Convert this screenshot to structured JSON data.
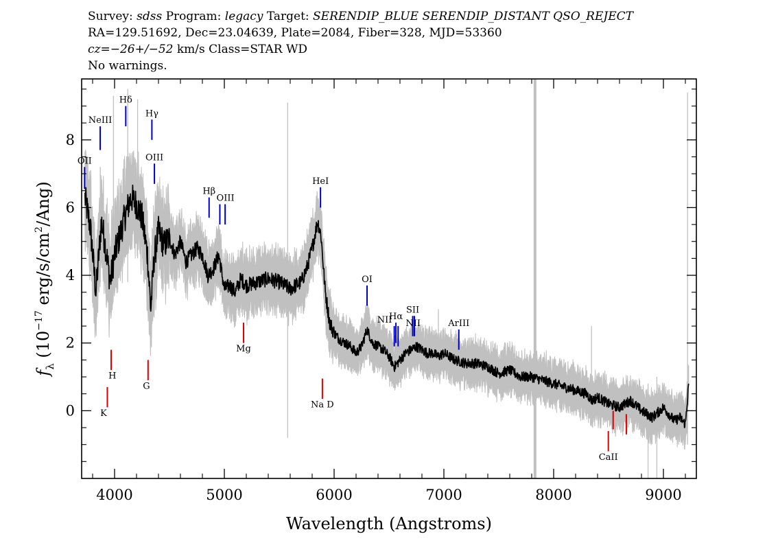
{
  "header": {
    "line1": {
      "p1": "Survey: ",
      "v1": "sdss",
      "p2": " Program: ",
      "v2": "legacy",
      "p3": " Target: ",
      "v3": "SERENDIP_BLUE SERENDIP_DISTANT QSO_REJECT"
    },
    "line2": "RA=129.51692, Dec=23.04639, Plate=2084, Fiber=328, MJD=53360",
    "line3": {
      "cz": "cz",
      "eq": "=",
      "v": "−26+/−52",
      "rest": " km/s Class=STAR WD"
    },
    "line4": "No warnings."
  },
  "chart_data": {
    "type": "line",
    "title": "",
    "xlabel": "Wavelength (Angstroms)",
    "ylabel_parts": {
      "f": "f",
      "sub": "λ",
      "open": " (10",
      "exp1": "−17",
      "mid": " erg/s/cm",
      "exp2": "2",
      "close": "/Ang)"
    },
    "xlim": [
      3700,
      9300
    ],
    "ylim": [
      -2,
      9.8
    ],
    "xticks": [
      4000,
      5000,
      6000,
      7000,
      8000,
      9000
    ],
    "yticks": [
      0,
      2,
      4,
      6,
      8
    ],
    "colors": {
      "flux": "#000000",
      "error": "#c0c0c0",
      "emission": "#0000cc",
      "absorption": "#dd0000"
    },
    "series": [
      {
        "x": [
          3730,
          3780,
          3830,
          3880,
          3920,
          3960,
          4000,
          4050,
          4100,
          4150,
          4200,
          4250,
          4300,
          4330,
          4360,
          4400,
          4450,
          4500,
          4550,
          4600,
          4650,
          4700,
          4750,
          4800,
          4850,
          4900,
          4950,
          5000,
          5050,
          5100,
          5150,
          5200,
          5300,
          5400,
          5500,
          5600,
          5700,
          5750,
          5800,
          5850,
          5880,
          5920,
          5960,
          6000,
          6050,
          6100,
          6150,
          6200,
          6250,
          6300,
          6350,
          6400,
          6450,
          6500,
          6550,
          6600,
          6650,
          6700,
          6750,
          6800,
          6850,
          6900,
          6950,
          7000,
          7100,
          7200,
          7300,
          7400,
          7500,
          7600,
          7700,
          7800,
          7900,
          8000,
          8100,
          8200,
          8300,
          8350,
          8400,
          8500,
          8600,
          8700,
          8800,
          8900,
          9000,
          9100,
          9150,
          9200,
          9230
        ],
        "y": [
          6.3,
          5.4,
          3.5,
          5.6,
          4.8,
          3.8,
          4.6,
          5.2,
          5.8,
          6.3,
          6.1,
          5.7,
          4.6,
          3.0,
          4.5,
          5.3,
          4.9,
          5.1,
          4.6,
          5.0,
          4.4,
          4.6,
          4.8,
          4.6,
          4.0,
          4.2,
          4.6,
          3.6,
          3.7,
          3.5,
          3.9,
          3.7,
          3.8,
          3.9,
          3.8,
          3.6,
          3.8,
          4.2,
          4.8,
          5.6,
          5.2,
          3.5,
          2.6,
          2.3,
          2.1,
          2.0,
          1.9,
          1.7,
          1.9,
          2.4,
          2.0,
          1.9,
          1.8,
          1.6,
          1.3,
          1.5,
          1.7,
          1.8,
          1.9,
          1.8,
          1.7,
          1.7,
          1.6,
          1.7,
          1.5,
          1.4,
          1.4,
          1.3,
          1.1,
          1.2,
          1.0,
          1.0,
          0.9,
          0.8,
          0.7,
          0.6,
          0.5,
          0.3,
          0.4,
          0.2,
          0.1,
          0.3,
          0.0,
          -0.2,
          0.1,
          -0.3,
          -0.2,
          -0.4,
          0.8
        ]
      }
    ],
    "spikes": [
      {
        "x": 3870,
        "lo": 3.8,
        "hi": 7.2
      },
      {
        "x": 3990,
        "lo": 4.0,
        "hi": 9.3
      },
      {
        "x": 4120,
        "lo": 3.8,
        "hi": 9.5
      },
      {
        "x": 4210,
        "lo": 4.5,
        "hi": 9.2
      },
      {
        "x": 5577,
        "lo": -0.8,
        "hi": 9.1
      },
      {
        "x": 6300,
        "lo": 1.5,
        "hi": 3.2
      },
      {
        "x": 6950,
        "lo": 1.6,
        "hi": 3.0
      },
      {
        "x": 8345,
        "lo": 0.8,
        "hi": 2.5
      },
      {
        "x": 8860,
        "lo": -2.0,
        "hi": 0.8
      },
      {
        "x": 8940,
        "lo": -2.0,
        "hi": 1.0
      },
      {
        "x": 9220,
        "lo": -1.0,
        "hi": 9.4
      }
    ],
    "bad_pixel_column": {
      "x": 7830
    },
    "emission_lines": [
      {
        "label": "OII",
        "x": 3727,
        "y1": 6.55,
        "y2": 7.2,
        "lx": 3727,
        "ly": 7.3
      },
      {
        "label": "NeIII",
        "x": 3869,
        "y1": 7.7,
        "y2": 8.4,
        "lx": 3869,
        "ly": 8.5
      },
      {
        "label": "Hδ",
        "x": 4102,
        "y1": 8.4,
        "y2": 9.0,
        "lx": 4102,
        "ly": 9.1
      },
      {
        "label": "Hγ",
        "x": 4340,
        "y1": 8.0,
        "y2": 8.6,
        "lx": 4340,
        "ly": 8.7
      },
      {
        "label": "OIII",
        "x": 4363,
        "y1": 6.7,
        "y2": 7.3,
        "lx": 4363,
        "ly": 7.4
      },
      {
        "label": "Hβ",
        "x": 4861,
        "y1": 5.7,
        "y2": 6.3,
        "lx": 4861,
        "ly": 6.4
      },
      {
        "label": "OIII",
        "x": 4959,
        "y1": 5.5,
        "y2": 6.1,
        "lx": 5010,
        "ly": 6.2
      },
      {
        "label": "",
        "x": 5007,
        "y1": 5.5,
        "y2": 6.1,
        "lx": 5007,
        "ly": 6.2
      },
      {
        "label": "HeI",
        "x": 5876,
        "y1": 6.0,
        "y2": 6.6,
        "lx": 5876,
        "ly": 6.7
      },
      {
        "label": "OI",
        "x": 6300,
        "y1": 3.1,
        "y2": 3.7,
        "lx": 6300,
        "ly": 3.8
      },
      {
        "label": "NII",
        "x": 6548,
        "y1": 1.9,
        "y2": 2.5,
        "lx": 6460,
        "ly": 2.6
      },
      {
        "label": "Hα",
        "x": 6563,
        "y1": 2.0,
        "y2": 2.6,
        "lx": 6563,
        "ly": 2.7
      },
      {
        "label": "NII",
        "x": 6583,
        "y1": 1.9,
        "y2": 2.5,
        "lx": 6720,
        "ly": 2.5
      },
      {
        "label": "SII",
        "x": 6716,
        "y1": 2.2,
        "y2": 2.8,
        "lx": 6716,
        "ly": 2.9
      },
      {
        "label": "",
        "x": 6731,
        "y1": 2.2,
        "y2": 2.8,
        "lx": 6731,
        "ly": 2.9
      },
      {
        "label": "ArIII",
        "x": 7136,
        "y1": 1.8,
        "y2": 2.4,
        "lx": 7136,
        "ly": 2.5
      }
    ],
    "absorption_lines": [
      {
        "label": "K",
        "x": 3934,
        "y1": 0.7,
        "y2": 0.1,
        "lx": 3900,
        "ly": -0.15
      },
      {
        "label": "H",
        "x": 3969,
        "y1": 1.8,
        "y2": 1.2,
        "lx": 3980,
        "ly": 0.95
      },
      {
        "label": "G",
        "x": 4305,
        "y1": 1.5,
        "y2": 0.9,
        "lx": 4290,
        "ly": 0.65
      },
      {
        "label": "Mg",
        "x": 5175,
        "y1": 2.6,
        "y2": 2.0,
        "lx": 5175,
        "ly": 1.75
      },
      {
        "label": "Na D",
        "x": 5893,
        "y1": 0.95,
        "y2": 0.35,
        "lx": 5893,
        "ly": 0.1
      },
      {
        "label": "CaII",
        "x": 8498,
        "y1": -0.6,
        "y2": -1.2,
        "lx": 8498,
        "ly": -1.45
      },
      {
        "label": "",
        "x": 8542,
        "y1": 0.0,
        "y2": -0.55,
        "lx": 8542,
        "ly": -0.8
      },
      {
        "label": "",
        "x": 8662,
        "y1": -0.1,
        "y2": -0.7,
        "lx": 8662,
        "ly": -0.95
      }
    ]
  }
}
